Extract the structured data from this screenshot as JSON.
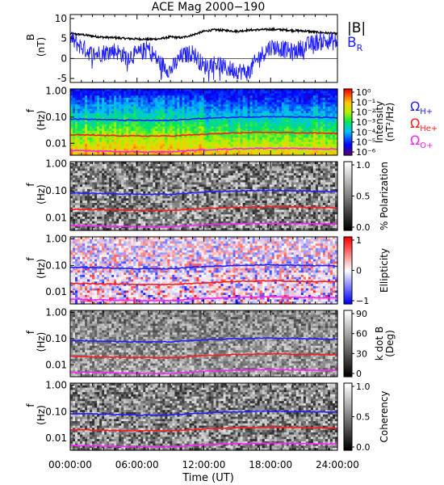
{
  "title": "ACE Mag 2000−190",
  "xlabel": "Time (UT)",
  "x_ticks": [
    "00:00:00",
    "06:00:00",
    "12:00:00",
    "18:00:00",
    "24:00:00"
  ],
  "colors": {
    "B_total": "#000000",
    "B_R": "#1f1fff",
    "gyro_Hplus": "#1f1fff",
    "gyro_Heplus": "#ff1a1a",
    "gyro_Oplus": "#ff20ff"
  },
  "legend": {
    "Btot": "|B|",
    "BR": "B",
    "BR_sub": "R",
    "omega": "Ω",
    "Hplus_sub": "H+",
    "Heplus_sub": "He+",
    "Oplus_sub": "O+"
  },
  "chart_data": [
    {
      "type": "line",
      "id": "bfield",
      "ylabel_main": "B",
      "ylabel_unit": "(nT)",
      "ylim": [
        -6,
        11
      ],
      "yticks": [
        "10",
        "5",
        "0",
        "-5"
      ],
      "x": [
        0,
        1,
        2,
        3,
        4,
        5,
        6,
        7,
        8,
        9,
        10,
        11,
        12,
        13,
        14,
        15,
        16,
        17,
        18,
        19,
        20,
        21,
        22,
        23,
        24
      ],
      "series": [
        {
          "name": "|B|",
          "values": [
            6.2,
            6.0,
            5.6,
            5.3,
            5.2,
            5.0,
            4.9,
            4.8,
            4.9,
            5.4,
            5.2,
            5.9,
            6.8,
            7.2,
            7.0,
            6.8,
            7.1,
            7.2,
            7.3,
            7.2,
            7.0,
            6.9,
            6.6,
            6.4,
            6.2
          ]
        },
        {
          "name": "B_R",
          "values": [
            5.0,
            3.0,
            1.0,
            1.5,
            2.0,
            0.5,
            1.0,
            2.5,
            -1.0,
            -3.0,
            0.5,
            1.5,
            -2.0,
            -1.0,
            -2.5,
            -3.0,
            -3.5,
            0.5,
            3.0,
            2.5,
            1.5,
            3.0,
            4.0,
            4.5,
            4.0
          ]
        }
      ]
    },
    {
      "type": "heatmap",
      "id": "intensity",
      "ylabel_main": "f",
      "ylabel_unit": "(Hz)",
      "yticks": [
        "1.00",
        "0.10",
        "0.01"
      ],
      "colorbar_ticks": [
        "10⁰",
        "10⁻¹",
        "10⁻²",
        "10⁻³",
        "10⁻⁴",
        "10⁻⁵",
        "10⁻⁶"
      ],
      "colorbar_label": [
        "Intensity",
        "(nT²/Hz)"
      ]
    },
    {
      "type": "heatmap",
      "id": "polarization",
      "ylabel_main": "f",
      "ylabel_unit": "(Hz)",
      "yticks": [
        "1.00",
        "0.10",
        "0.01"
      ],
      "colorbar_ticks": [
        "1.0",
        "0.5",
        "0.0"
      ],
      "colorbar_label": [
        "% Polarization"
      ]
    },
    {
      "type": "heatmap",
      "id": "ellipticity",
      "ylabel_main": "f",
      "ylabel_unit": "(Hz)",
      "yticks": [
        "1.00",
        "0.10",
        "0.01"
      ],
      "colorbar_ticks": [
        "1",
        "0",
        "−1"
      ],
      "colorbar_label": [
        "Ellipticity"
      ]
    },
    {
      "type": "heatmap",
      "id": "kdotb",
      "ylabel_main": "f",
      "ylabel_unit": "(Hz)",
      "yticks": [
        "1.00",
        "0.10",
        "0.01"
      ],
      "colorbar_ticks": [
        "90",
        "60",
        "30",
        "0"
      ],
      "colorbar_label": [
        "k dot B",
        "(Deg)"
      ]
    },
    {
      "type": "heatmap",
      "id": "coherency",
      "ylabel_main": "f",
      "ylabel_unit": "(Hz)",
      "yticks": [
        "1.00",
        "0.10",
        "0.01"
      ],
      "colorbar_ticks": [
        "1.0",
        "0.5",
        "0.0"
      ],
      "colorbar_label": [
        "Coherency"
      ]
    }
  ],
  "gyrofrequencies_hz": {
    "x": [
      0,
      3,
      6,
      9,
      12,
      15,
      18,
      21,
      24
    ],
    "Hplus": [
      0.085,
      0.08,
      0.075,
      0.075,
      0.09,
      0.1,
      0.105,
      0.1,
      0.095
    ],
    "Heplus": [
      0.021,
      0.02,
      0.019,
      0.019,
      0.022,
      0.025,
      0.026,
      0.025,
      0.024
    ],
    "Oplus": [
      0.0053,
      0.005,
      0.0047,
      0.0047,
      0.0056,
      0.0062,
      0.0065,
      0.0062,
      0.006
    ]
  }
}
